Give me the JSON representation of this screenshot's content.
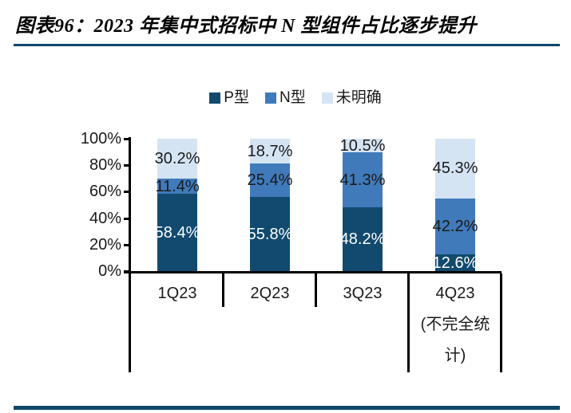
{
  "title": {
    "text": "图表96：2023 年集中式招标中 N 型组件占比逐步提升"
  },
  "colors": {
    "rule": "#0e486b",
    "axis": "#000000",
    "label_dark": "#1a1a1a",
    "label_light": "#ffffff"
  },
  "chart_data": {
    "type": "bar",
    "stacked": true,
    "orientation": "vertical",
    "title": "2023 年集中式招标中 N 型组件占比逐步提升",
    "categories": [
      "1Q23",
      "2Q23",
      "3Q23",
      "4Q23"
    ],
    "category_extra_lines": [
      [],
      [],
      [],
      [
        "(不完全统",
        "计)"
      ]
    ],
    "series": [
      {
        "name": "P型",
        "color": "#114a6e",
        "label_color": "#ffffff",
        "values": [
          58.4,
          55.8,
          48.2,
          12.6
        ],
        "labels": [
          "58.4%",
          "55.8%",
          "48.2%",
          "12.6%"
        ]
      },
      {
        "name": "N型",
        "color": "#407aba",
        "label_color": "#1a1a1a",
        "values": [
          11.4,
          25.4,
          41.3,
          42.2
        ],
        "labels": [
          "11.4%",
          "25.4%",
          "41.3%",
          "42.2%"
        ]
      },
      {
        "name": "未明确",
        "color": "#d5e4f3",
        "label_color": "#1a1a1a",
        "values": [
          30.2,
          18.7,
          10.5,
          45.3
        ],
        "labels": [
          "30.2%",
          "18.7%",
          "10.5%",
          "45.3%"
        ]
      }
    ],
    "xlabel": "",
    "ylabel": "",
    "ylim": [
      0,
      100
    ],
    "y_ticks": [
      "0%",
      "20%",
      "40%",
      "60%",
      "80%",
      "100%"
    ],
    "grid": false,
    "legend_position": "top"
  }
}
